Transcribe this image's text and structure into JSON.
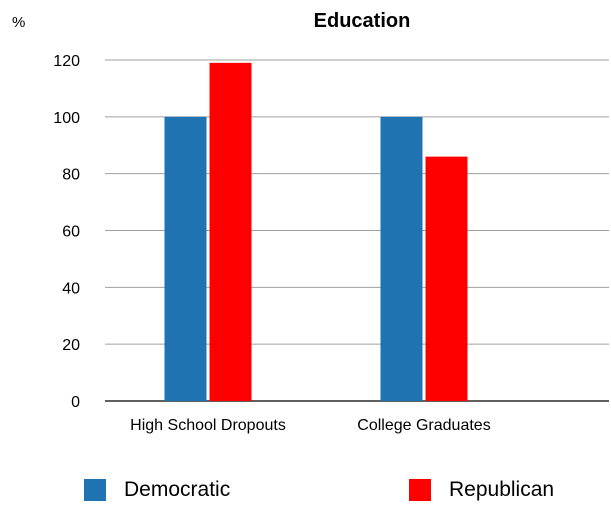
{
  "chart_data": {
    "type": "bar",
    "title": "Education",
    "ylabel": "%",
    "categories": [
      "High School Dropouts",
      "College Graduates"
    ],
    "series": [
      {
        "name": "Democratic",
        "values": [
          100,
          100
        ],
        "color": "#1f73b0"
      },
      {
        "name": "Republican",
        "values": [
          119,
          86
        ],
        "color": "#ff0000"
      }
    ],
    "ylim": [
      0,
      120
    ],
    "yticks": [
      0,
      20,
      40,
      60,
      80,
      100,
      120
    ],
    "grid": true,
    "legend_position": "bottom"
  }
}
